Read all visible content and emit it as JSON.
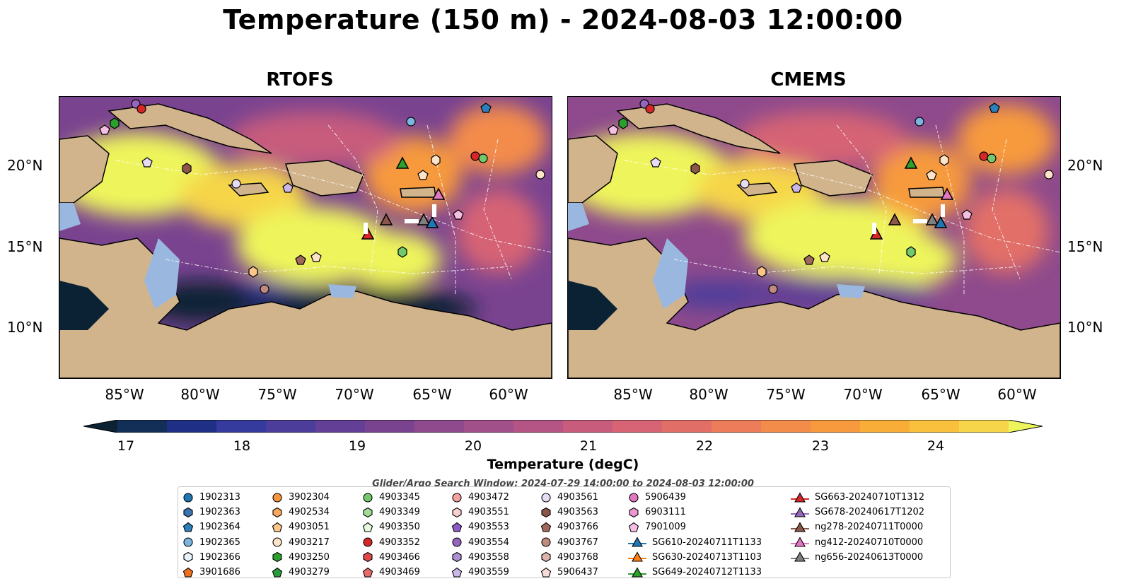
{
  "title": "Temperature (150 m) - 2024-08-03 12:00:00",
  "panels": [
    {
      "title": "RTOFS"
    },
    {
      "title": "CMEMS"
    }
  ],
  "lat_labels": [
    "20°N",
    "15°N",
    "10°N"
  ],
  "lon_labels": [
    "85°W",
    "80°W",
    "75°W",
    "70°W",
    "65°W",
    "60°W"
  ],
  "colorbar": {
    "label": "Temperature (degC)",
    "ticks": [
      "17",
      "18",
      "19",
      "20",
      "21",
      "22",
      "23",
      "24"
    ],
    "min": 16.75,
    "max": 24.5,
    "colors": [
      "#0b2234",
      "#132f57",
      "#1f2f86",
      "#353a9d",
      "#4d3d9a",
      "#633f95",
      "#7a4390",
      "#8e4a8c",
      "#a1508a",
      "#b45586",
      "#c75c7d",
      "#d66474",
      "#e26f67",
      "#ec7c5a",
      "#f38b4b",
      "#f79a3e",
      "#f9ad39",
      "#f9c03d",
      "#f6d54a",
      "#eef55c"
    ]
  },
  "search_window": "Glider/Argo Search Window: 2024-07-29 14:00:00 to 2024-08-03 12:00:00",
  "legend": {
    "columns": [
      [
        {
          "label": "1902313",
          "shape": "circle",
          "color": "#1f77b4"
        },
        {
          "label": "1902363",
          "shape": "hexagon",
          "color": "#3b75b0"
        },
        {
          "label": "1902364",
          "shape": "pentagon",
          "color": "#2c7fb8"
        },
        {
          "label": "1902365",
          "shape": "circle",
          "color": "#7bb6e0"
        },
        {
          "label": "1902366",
          "shape": "hexagon",
          "color": "#e8f2fb"
        },
        {
          "label": "3901686",
          "shape": "pentagon",
          "color": "#f0701c"
        }
      ],
      [
        {
          "label": "3902304",
          "shape": "circle",
          "color": "#f7953b"
        },
        {
          "label": "4902534",
          "shape": "hexagon",
          "color": "#f9a85c"
        },
        {
          "label": "4903051",
          "shape": "pentagon",
          "color": "#fcc589"
        },
        {
          "label": "4903217",
          "shape": "circle",
          "color": "#fde3c7"
        },
        {
          "label": "4903250",
          "shape": "hexagon",
          "color": "#2ca02c"
        },
        {
          "label": "4903279",
          "shape": "pentagon",
          "color": "#2a9b3a"
        }
      ],
      [
        {
          "label": "4903345",
          "shape": "circle",
          "color": "#72c96c"
        },
        {
          "label": "4903349",
          "shape": "hexagon",
          "color": "#a3dd95"
        },
        {
          "label": "4903350",
          "shape": "pentagon",
          "color": "#e6f7e0"
        },
        {
          "label": "4903352",
          "shape": "circle",
          "color": "#d62728"
        },
        {
          "label": "4903466",
          "shape": "hexagon",
          "color": "#e04848"
        },
        {
          "label": "4903469",
          "shape": "pentagon",
          "color": "#ea6b6b"
        }
      ],
      [
        {
          "label": "4903472",
          "shape": "circle",
          "color": "#f79f9f"
        },
        {
          "label": "4903551",
          "shape": "hexagon",
          "color": "#fbd0d0"
        },
        {
          "label": "4903553",
          "shape": "pentagon",
          "color": "#8c5ac8"
        },
        {
          "label": "4903554",
          "shape": "circle",
          "color": "#9467bd"
        },
        {
          "label": "4903558",
          "shape": "hexagon",
          "color": "#ae8fd6"
        },
        {
          "label": "4903559",
          "shape": "pentagon",
          "color": "#cbb6e8"
        }
      ],
      [
        {
          "label": "4903561",
          "shape": "circle",
          "color": "#e7dcf5"
        },
        {
          "label": "4903563",
          "shape": "hexagon",
          "color": "#8c564b"
        },
        {
          "label": "4903766",
          "shape": "pentagon",
          "color": "#a0685c"
        },
        {
          "label": "4903767",
          "shape": "circle",
          "color": "#c08a7e"
        },
        {
          "label": "4903768",
          "shape": "hexagon",
          "color": "#ddb2a8"
        },
        {
          "label": "5906437",
          "shape": "pentagon",
          "color": "#f5dcd6"
        }
      ],
      [
        {
          "label": "5906439",
          "shape": "circle",
          "color": "#e377c2"
        },
        {
          "label": "6903111",
          "shape": "hexagon",
          "color": "#eb97d1"
        },
        {
          "label": "7901009",
          "shape": "pentagon",
          "color": "#f5bfe3"
        },
        {
          "label": "SG610-20240711T1133",
          "shape": "triangle",
          "color": "#1f77b4"
        },
        {
          "label": "SG630-20240713T1103",
          "shape": "triangle",
          "color": "#ff7f0e"
        },
        {
          "label": "SG649-20240712T1133",
          "shape": "triangle",
          "color": "#2ca02c"
        }
      ],
      [
        {
          "label": "SG663-20240710T1312",
          "shape": "triangle",
          "color": "#d62728"
        },
        {
          "label": "SG678-20240617T1202",
          "shape": "triangle",
          "color": "#9467bd"
        },
        {
          "label": "ng278-20240711T0000",
          "shape": "triangle",
          "color": "#8c564b"
        },
        {
          "label": "ng412-20240710T0000",
          "shape": "triangle",
          "color": "#e377c2"
        },
        {
          "label": "ng656-20240613T0000",
          "shape": "triangle",
          "color": "#7f7f7f"
        }
      ]
    ]
  },
  "map_colors": {
    "land": "#d2b48c",
    "shelf": "#9ab7e0",
    "deep": "#0b2234",
    "warm": "#eef55c",
    "mid": "#b45586",
    "cool": "#4d3d9a"
  }
}
